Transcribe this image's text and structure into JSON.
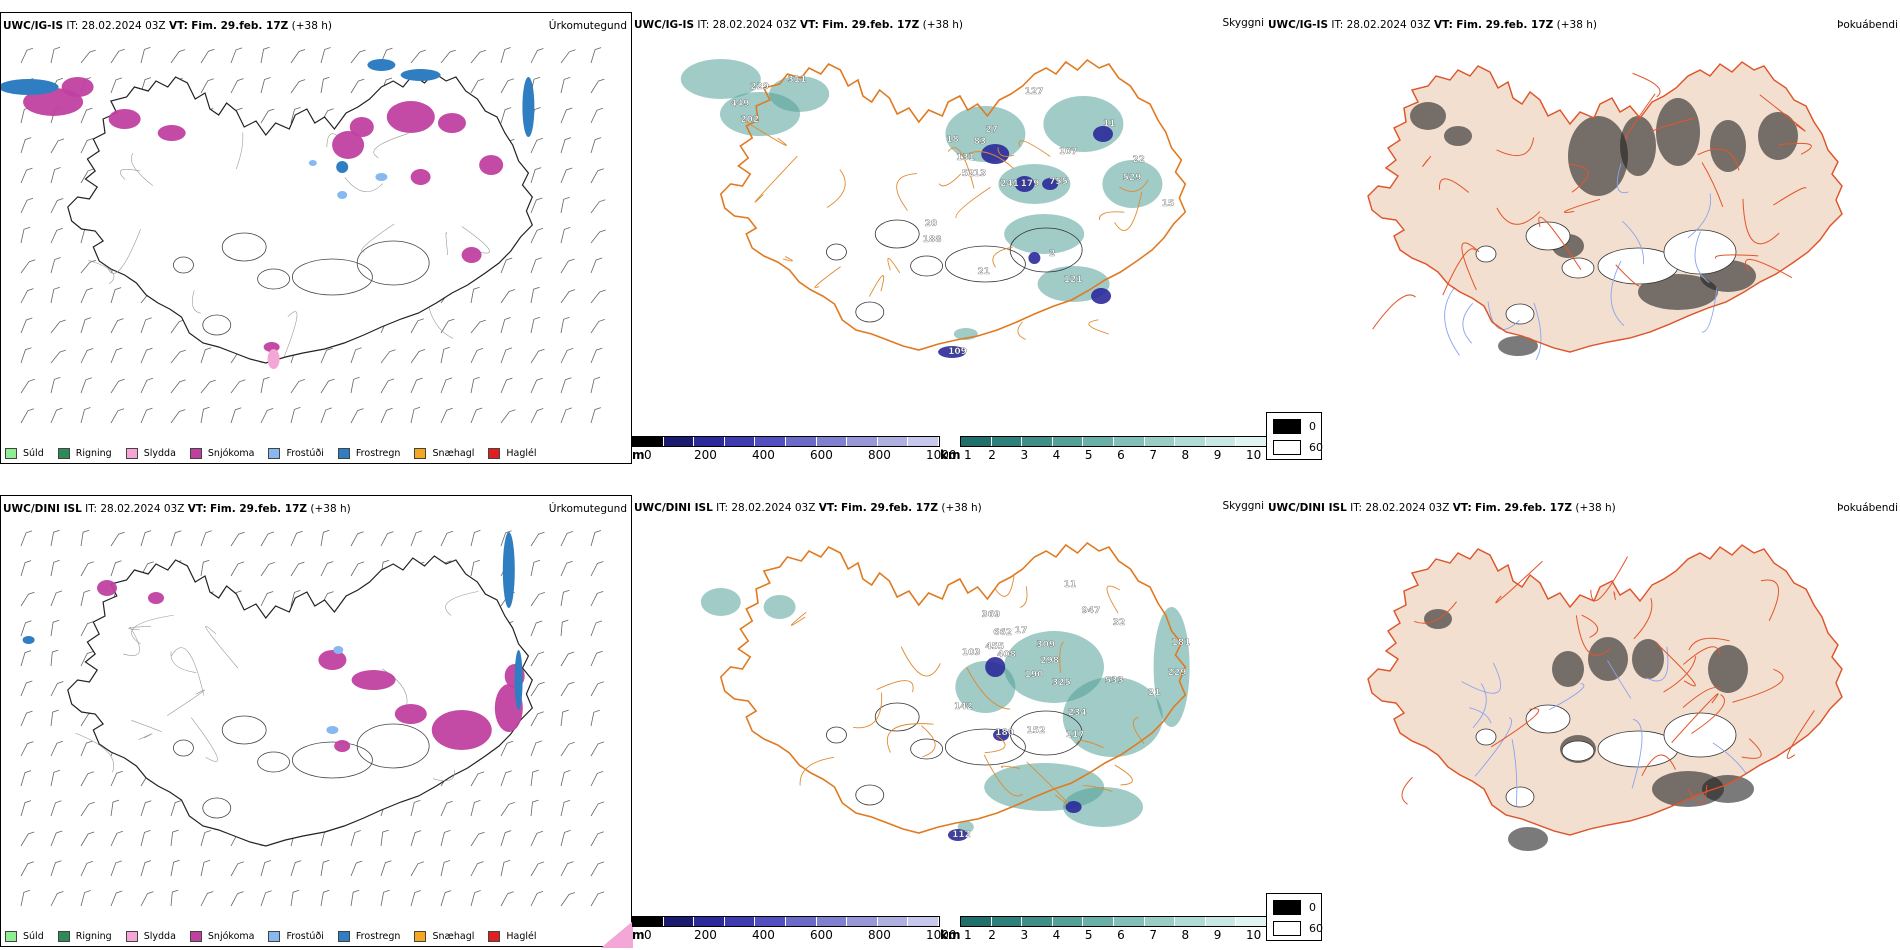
{
  "rows": [
    {
      "model": "UWC/IG-IS",
      "it_label": "IT:",
      "it": "28.02.2024 03Z",
      "vt_label": "VT:",
      "vt": "Fim. 29.feb. 17Z",
      "lead": "(+38 h)"
    },
    {
      "model": "UWC/DINI ISL",
      "it_label": "IT:",
      "it": "28.02.2024 03Z",
      "vt_label": "VT:",
      "vt": "Fim. 29.feb. 17Z",
      "lead": "(+38 h)"
    }
  ],
  "panels": {
    "precip_type": "Úrkomutegund",
    "visibility": "Skyggni",
    "fog": "Þokuábendi"
  },
  "precip_legend": [
    {
      "label": "Súld",
      "color": "#90ee90"
    },
    {
      "label": "Rigning",
      "color": "#2e8b57"
    },
    {
      "label": "Slydda",
      "color": "#f4a6d7"
    },
    {
      "label": "Snjókoma",
      "color": "#c040a0"
    },
    {
      "label": "Frostúði",
      "color": "#87b8f0"
    },
    {
      "label": "Frostregn",
      "color": "#2f7ec2"
    },
    {
      "label": "Snæhagl",
      "color": "#f5a623"
    },
    {
      "label": "Haglél",
      "color": "#e02020"
    }
  ],
  "vis_scale_m": {
    "unit": "m",
    "ticks": [
      "0",
      "200",
      "400",
      "600",
      "800",
      "1000"
    ],
    "colors": [
      "#000000",
      "#1a1a6e",
      "#2a2a9a",
      "#3c3cb0",
      "#5050c0",
      "#6a6ac8",
      "#8080d0",
      "#9898d8",
      "#b0b0e0",
      "#c8c8ec"
    ]
  },
  "vis_scale_km": {
    "unit": "km",
    "ticks": [
      "1",
      "2",
      "3",
      "4",
      "5",
      "6",
      "7",
      "8",
      "9",
      "10"
    ],
    "colors": [
      "#1f6f6a",
      "#2e807a",
      "#3f8f88",
      "#52a098",
      "#68b0a8",
      "#80c0b8",
      "#98cec6",
      "#b0dcd6",
      "#c8e8e4",
      "#e0f4f2"
    ]
  },
  "fog_legend": [
    {
      "label": "0",
      "color": "#000000"
    },
    {
      "label": "60",
      "color": "#ffffff"
    }
  ],
  "vis_labels_top": [
    "229",
    "311",
    "449",
    "202",
    "27",
    "83",
    "18",
    "127",
    "11",
    "131",
    "52",
    "13",
    "241",
    "179",
    "755",
    "22",
    "529",
    "15",
    "107",
    "20",
    "188",
    "21",
    "2",
    "121",
    "109"
  ],
  "vis_labels_bottom": [
    "947",
    "11",
    "369",
    "662",
    "455",
    "103",
    "408",
    "17",
    "309",
    "298",
    "32",
    "181",
    "190",
    "325",
    "533",
    "229",
    "21",
    "142",
    "234",
    "180",
    "152",
    "117",
    "112"
  ]
}
